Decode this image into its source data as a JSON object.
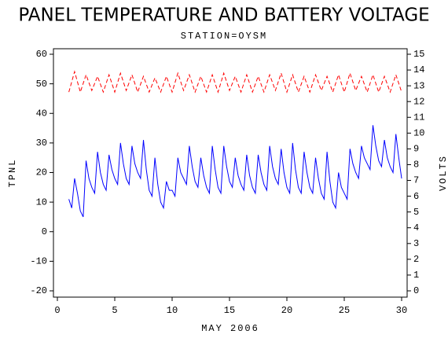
{
  "chart_data": {
    "type": "line",
    "title": "PANEL TEMPERATURE AND BATTERY VOLTAGE",
    "subtitle": "STATION=OYSM",
    "x_label": "MAY 2006",
    "y_label": "TPNL",
    "y2_label": "VOLTS",
    "xlim": [
      0,
      30
    ],
    "xticks": [
      0,
      5,
      10,
      15,
      20,
      25,
      30
    ],
    "ylim": [
      -20,
      60
    ],
    "yticks": [
      -20,
      -10,
      0,
      10,
      20,
      30,
      40,
      50,
      60
    ],
    "y2lim": [
      0,
      15
    ],
    "y2ticks": [
      0,
      1,
      2,
      3,
      4,
      5,
      6,
      7,
      8,
      9,
      10,
      11,
      12,
      13,
      14,
      15
    ],
    "grid": false,
    "series": [
      {
        "name": "TPNL",
        "color": "#0000ff",
        "dashed": false,
        "x": [
          1,
          1.25,
          1.5,
          1.75,
          2,
          2.25,
          2.5,
          2.75,
          3,
          3.25,
          3.5,
          3.75,
          4,
          4.25,
          4.5,
          4.75,
          5,
          5.25,
          5.5,
          5.75,
          6,
          6.25,
          6.5,
          6.75,
          7,
          7.25,
          7.5,
          7.75,
          8,
          8.25,
          8.5,
          8.75,
          9,
          9.25,
          9.5,
          9.75,
          10,
          10.25,
          10.5,
          10.75,
          11,
          11.25,
          11.5,
          11.75,
          12,
          12.25,
          12.5,
          12.75,
          13,
          13.25,
          13.5,
          13.75,
          14,
          14.25,
          14.5,
          14.75,
          15,
          15.25,
          15.5,
          15.75,
          16,
          16.25,
          16.5,
          16.75,
          17,
          17.25,
          17.5,
          17.75,
          18,
          18.25,
          18.5,
          18.75,
          19,
          19.25,
          19.5,
          19.75,
          20,
          20.25,
          20.5,
          20.75,
          21,
          21.25,
          21.5,
          21.75,
          22,
          22.25,
          22.5,
          22.75,
          23,
          23.25,
          23.5,
          23.75,
          24,
          24.25,
          24.5,
          24.75,
          25,
          25.25,
          25.5,
          25.75,
          26,
          26.25,
          26.5,
          26.75,
          27,
          27.25,
          27.5,
          27.75,
          28,
          28.25,
          28.5,
          28.75,
          29,
          29.25,
          29.5,
          29.75,
          30
        ],
        "values": [
          11,
          8,
          18,
          13,
          7,
          5,
          24,
          18,
          15,
          13,
          27,
          20,
          16,
          14,
          26,
          21,
          18,
          16,
          30,
          23,
          18,
          16,
          29,
          23,
          20,
          18,
          31,
          21,
          14,
          12,
          25,
          16,
          10,
          8,
          17,
          14,
          14,
          12,
          25,
          20,
          18,
          16,
          29,
          22,
          17,
          15,
          25,
          19,
          15,
          13,
          29,
          21,
          15,
          13,
          29,
          22,
          17,
          15,
          25,
          19,
          16,
          14,
          26,
          19,
          15,
          13,
          26,
          20,
          16,
          14,
          29,
          22,
          18,
          16,
          28,
          20,
          15,
          13,
          30,
          21,
          15,
          13,
          27,
          20,
          15,
          13,
          25,
          18,
          13,
          11,
          27,
          17,
          10,
          8,
          20,
          15,
          13,
          11,
          28,
          23,
          20,
          18,
          29,
          25,
          23,
          21,
          36,
          29,
          24,
          22,
          31,
          25,
          22,
          20,
          33,
          25,
          18
        ]
      },
      {
        "name": "VOLTS",
        "color": "#ff0000",
        "dashed": true,
        "axis": "y2",
        "x": [
          1,
          1.5,
          2,
          2.5,
          3,
          3.5,
          4,
          4.5,
          5,
          5.5,
          6,
          6.5,
          7,
          7.5,
          8,
          8.5,
          9,
          9.5,
          10,
          10.5,
          11,
          11.5,
          12,
          12.5,
          13,
          13.5,
          14,
          14.5,
          15,
          15.5,
          16,
          16.5,
          17,
          17.5,
          18,
          18.5,
          19,
          19.5,
          20,
          20.5,
          21,
          21.5,
          22,
          22.5,
          23,
          23.5,
          24,
          24.5,
          25,
          25.5,
          26,
          26.5,
          27,
          27.5,
          28,
          28.5,
          29,
          29.5,
          30
        ],
        "values": [
          12.6,
          13.9,
          12.6,
          13.7,
          12.7,
          13.6,
          12.6,
          13.7,
          12.6,
          13.8,
          12.7,
          13.7,
          12.6,
          13.6,
          12.6,
          13.5,
          12.6,
          13.6,
          12.6,
          13.8,
          12.7,
          13.7,
          12.6,
          13.6,
          12.6,
          13.7,
          12.6,
          13.8,
          12.7,
          13.6,
          12.6,
          13.7,
          12.6,
          13.6,
          12.6,
          13.7,
          12.7,
          13.8,
          12.6,
          13.7,
          12.6,
          13.6,
          12.6,
          13.7,
          12.7,
          13.6,
          12.6,
          13.7,
          12.6,
          13.8,
          12.7,
          13.6,
          12.6,
          13.7,
          12.6,
          13.6,
          12.6,
          13.7,
          12.6
        ]
      }
    ]
  }
}
